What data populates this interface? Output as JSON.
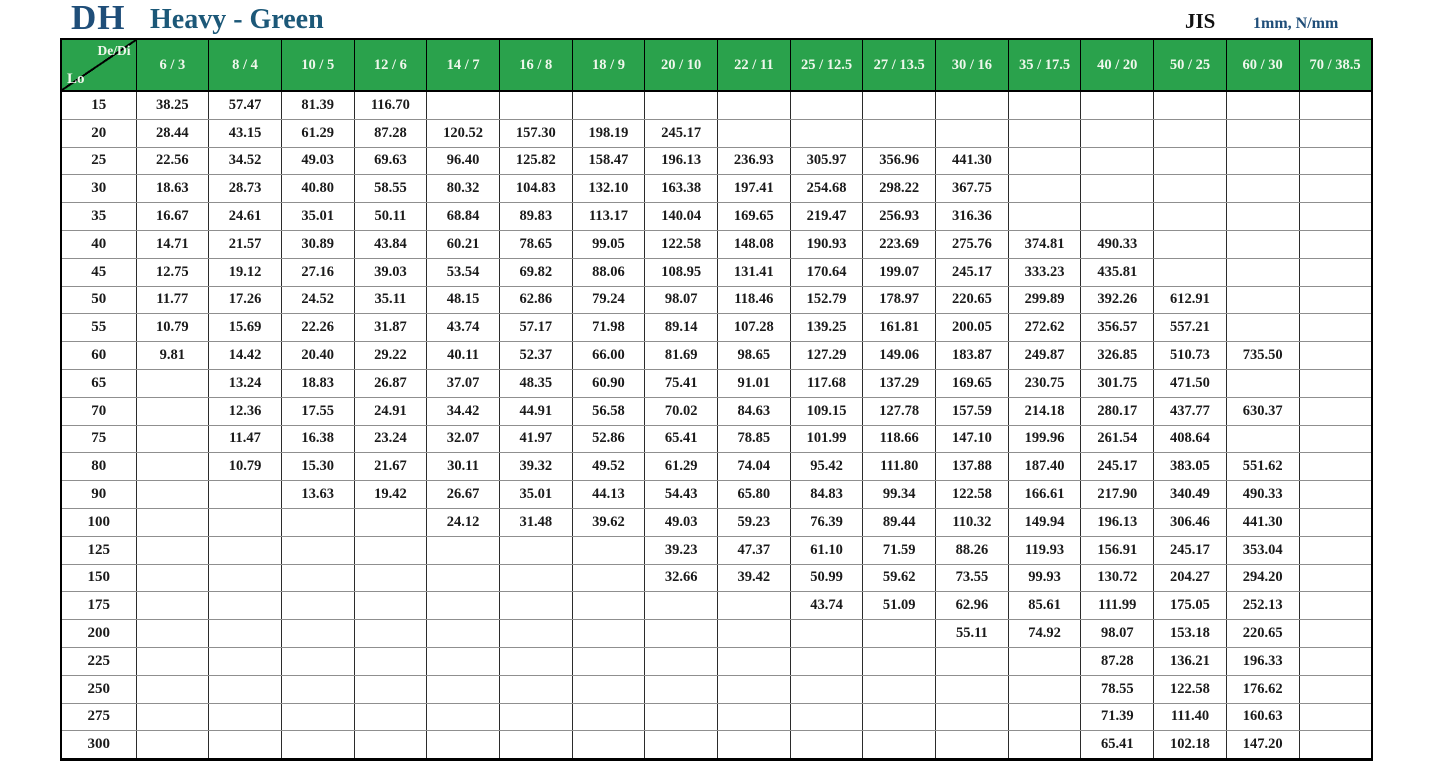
{
  "header": {
    "code": "DH",
    "name": "Heavy - Green",
    "standard": "JIS",
    "units": "1mm, N/mm"
  },
  "colors": {
    "header_green": "#2AA24C",
    "title_blue": "#1F4E79",
    "subtitle_blue": "#1C5878",
    "header_text": "#EFF7EC",
    "body_text": "#1a1a1a"
  },
  "table": {
    "corner": {
      "top_label": "De/Di",
      "bottom_label": "Lo"
    },
    "columns": [
      "6 / 3",
      "8 / 4",
      "10 / 5",
      "12 / 6",
      "14 / 7",
      "16 / 8",
      "18 / 9",
      "20 / 10",
      "22 / 11",
      "25 / 12.5",
      "27 / 13.5",
      "30 / 16",
      "35 / 17.5",
      "40 / 20",
      "50 / 25",
      "60 / 30",
      "70 / 38.5"
    ],
    "rows": [
      {
        "lo": "15",
        "values": [
          "38.25",
          "57.47",
          "81.39",
          "116.70",
          "",
          "",
          "",
          "",
          "",
          "",
          "",
          "",
          "",
          "",
          "",
          "",
          ""
        ]
      },
      {
        "lo": "20",
        "values": [
          "28.44",
          "43.15",
          "61.29",
          "87.28",
          "120.52",
          "157.30",
          "198.19",
          "245.17",
          "",
          "",
          "",
          "",
          "",
          "",
          "",
          "",
          ""
        ]
      },
      {
        "lo": "25",
        "values": [
          "22.56",
          "34.52",
          "49.03",
          "69.63",
          "96.40",
          "125.82",
          "158.47",
          "196.13",
          "236.93",
          "305.97",
          "356.96",
          "441.30",
          "",
          "",
          "",
          "",
          ""
        ]
      },
      {
        "lo": "30",
        "values": [
          "18.63",
          "28.73",
          "40.80",
          "58.55",
          "80.32",
          "104.83",
          "132.10",
          "163.38",
          "197.41",
          "254.68",
          "298.22",
          "367.75",
          "",
          "",
          "",
          "",
          ""
        ]
      },
      {
        "lo": "35",
        "values": [
          "16.67",
          "24.61",
          "35.01",
          "50.11",
          "68.84",
          "89.83",
          "113.17",
          "140.04",
          "169.65",
          "219.47",
          "256.93",
          "316.36",
          "",
          "",
          "",
          "",
          ""
        ]
      },
      {
        "lo": "40",
        "values": [
          "14.71",
          "21.57",
          "30.89",
          "43.84",
          "60.21",
          "78.65",
          "99.05",
          "122.58",
          "148.08",
          "190.93",
          "223.69",
          "275.76",
          "374.81",
          "490.33",
          "",
          "",
          ""
        ]
      },
      {
        "lo": "45",
        "values": [
          "12.75",
          "19.12",
          "27.16",
          "39.03",
          "53.54",
          "69.82",
          "88.06",
          "108.95",
          "131.41",
          "170.64",
          "199.07",
          "245.17",
          "333.23",
          "435.81",
          "",
          "",
          ""
        ]
      },
      {
        "lo": "50",
        "values": [
          "11.77",
          "17.26",
          "24.52",
          "35.11",
          "48.15",
          "62.86",
          "79.24",
          "98.07",
          "118.46",
          "152.79",
          "178.97",
          "220.65",
          "299.89",
          "392.26",
          "612.91",
          "",
          ""
        ]
      },
      {
        "lo": "55",
        "values": [
          "10.79",
          "15.69",
          "22.26",
          "31.87",
          "43.74",
          "57.17",
          "71.98",
          "89.14",
          "107.28",
          "139.25",
          "161.81",
          "200.05",
          "272.62",
          "356.57",
          "557.21",
          "",
          ""
        ]
      },
      {
        "lo": "60",
        "values": [
          "9.81",
          "14.42",
          "20.40",
          "29.22",
          "40.11",
          "52.37",
          "66.00",
          "81.69",
          "98.65",
          "127.29",
          "149.06",
          "183.87",
          "249.87",
          "326.85",
          "510.73",
          "735.50",
          ""
        ]
      },
      {
        "lo": "65",
        "values": [
          "",
          "13.24",
          "18.83",
          "26.87",
          "37.07",
          "48.35",
          "60.90",
          "75.41",
          "91.01",
          "117.68",
          "137.29",
          "169.65",
          "230.75",
          "301.75",
          "471.50",
          "",
          ""
        ]
      },
      {
        "lo": "70",
        "values": [
          "",
          "12.36",
          "17.55",
          "24.91",
          "34.42",
          "44.91",
          "56.58",
          "70.02",
          "84.63",
          "109.15",
          "127.78",
          "157.59",
          "214.18",
          "280.17",
          "437.77",
          "630.37",
          ""
        ]
      },
      {
        "lo": "75",
        "values": [
          "",
          "11.47",
          "16.38",
          "23.24",
          "32.07",
          "41.97",
          "52.86",
          "65.41",
          "78.85",
          "101.99",
          "118.66",
          "147.10",
          "199.96",
          "261.54",
          "408.64",
          "",
          ""
        ]
      },
      {
        "lo": "80",
        "values": [
          "",
          "10.79",
          "15.30",
          "21.67",
          "30.11",
          "39.32",
          "49.52",
          "61.29",
          "74.04",
          "95.42",
          "111.80",
          "137.88",
          "187.40",
          "245.17",
          "383.05",
          "551.62",
          ""
        ]
      },
      {
        "lo": "90",
        "values": [
          "",
          "",
          "13.63",
          "19.42",
          "26.67",
          "35.01",
          "44.13",
          "54.43",
          "65.80",
          "84.83",
          "99.34",
          "122.58",
          "166.61",
          "217.90",
          "340.49",
          "490.33",
          ""
        ]
      },
      {
        "lo": "100",
        "values": [
          "",
          "",
          "",
          "",
          "24.12",
          "31.48",
          "39.62",
          "49.03",
          "59.23",
          "76.39",
          "89.44",
          "110.32",
          "149.94",
          "196.13",
          "306.46",
          "441.30",
          ""
        ]
      },
      {
        "lo": "125",
        "values": [
          "",
          "",
          "",
          "",
          "",
          "",
          "",
          "39.23",
          "47.37",
          "61.10",
          "71.59",
          "88.26",
          "119.93",
          "156.91",
          "245.17",
          "353.04",
          ""
        ]
      },
      {
        "lo": "150",
        "values": [
          "",
          "",
          "",
          "",
          "",
          "",
          "",
          "32.66",
          "39.42",
          "50.99",
          "59.62",
          "73.55",
          "99.93",
          "130.72",
          "204.27",
          "294.20",
          ""
        ]
      },
      {
        "lo": "175",
        "values": [
          "",
          "",
          "",
          "",
          "",
          "",
          "",
          "",
          "",
          "43.74",
          "51.09",
          "62.96",
          "85.61",
          "111.99",
          "175.05",
          "252.13",
          ""
        ]
      },
      {
        "lo": "200",
        "values": [
          "",
          "",
          "",
          "",
          "",
          "",
          "",
          "",
          "",
          "",
          "",
          "55.11",
          "74.92",
          "98.07",
          "153.18",
          "220.65",
          ""
        ]
      },
      {
        "lo": "225",
        "values": [
          "",
          "",
          "",
          "",
          "",
          "",
          "",
          "",
          "",
          "",
          "",
          "",
          "",
          "87.28",
          "136.21",
          "196.33",
          ""
        ]
      },
      {
        "lo": "250",
        "values": [
          "",
          "",
          "",
          "",
          "",
          "",
          "",
          "",
          "",
          "",
          "",
          "",
          "",
          "78.55",
          "122.58",
          "176.62",
          ""
        ]
      },
      {
        "lo": "275",
        "values": [
          "",
          "",
          "",
          "",
          "",
          "",
          "",
          "",
          "",
          "",
          "",
          "",
          "",
          "71.39",
          "111.40",
          "160.63",
          ""
        ]
      },
      {
        "lo": "300",
        "values": [
          "",
          "",
          "",
          "",
          "",
          "",
          "",
          "",
          "",
          "",
          "",
          "",
          "",
          "65.41",
          "102.18",
          "147.20",
          ""
        ]
      }
    ]
  }
}
